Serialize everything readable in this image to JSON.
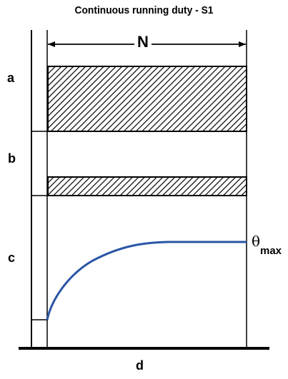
{
  "title": "Continuous running duty - S1",
  "duration_label": "N",
  "rows": {
    "a": "a",
    "b": "b",
    "c": "c"
  },
  "time_axis_label": "d",
  "temperature_label": {
    "symbol": "θ",
    "subscript": "max"
  },
  "colors": {
    "curve": "#2a55a5",
    "ink": "#000000"
  }
}
